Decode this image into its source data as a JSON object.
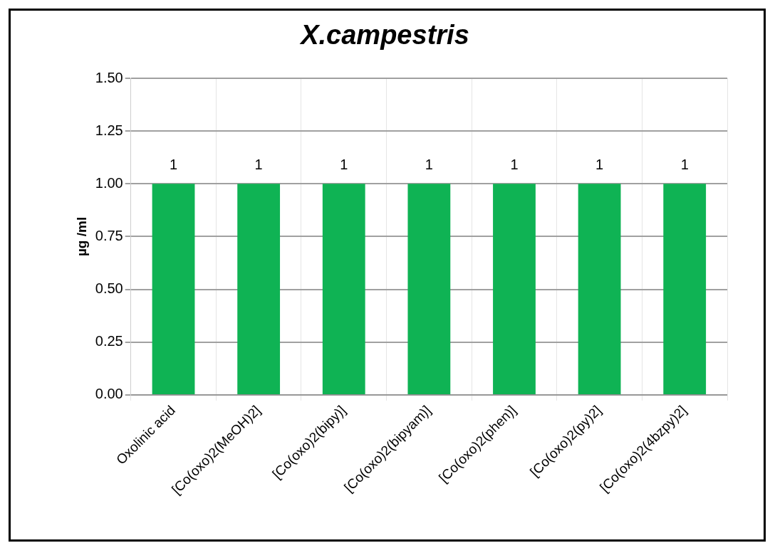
{
  "chart_data": {
    "type": "bar",
    "title": "X.campestris",
    "ylabel": "µg /ml",
    "categories": [
      "Oxolinic acid",
      "[Co(oxo)2(MeOH)2]",
      "[Co(oxo)2(bipy)]",
      "[Co(oxo)2(bipyam)]",
      "[Co(oxo)2(phen)]",
      "[Co(oxo)2(py)2]",
      "[Co(oxo)2(4bzpy)2]"
    ],
    "values": [
      1,
      1,
      1,
      1,
      1,
      1,
      1
    ],
    "color": "#0fb354",
    "ylim": [
      0,
      1.5
    ],
    "yticks": [
      {
        "value": 0,
        "label": "0.00"
      },
      {
        "value": 0.25,
        "label": "0.25"
      },
      {
        "value": 0.5,
        "label": "0.50"
      },
      {
        "value": 0.75,
        "label": "0.75"
      },
      {
        "value": 1,
        "label": "1.00"
      },
      {
        "value": 1.25,
        "label": "1.25"
      },
      {
        "value": 1.5,
        "label": "1.50"
      }
    ],
    "grid": true,
    "legend": false,
    "data_labels": true
  }
}
